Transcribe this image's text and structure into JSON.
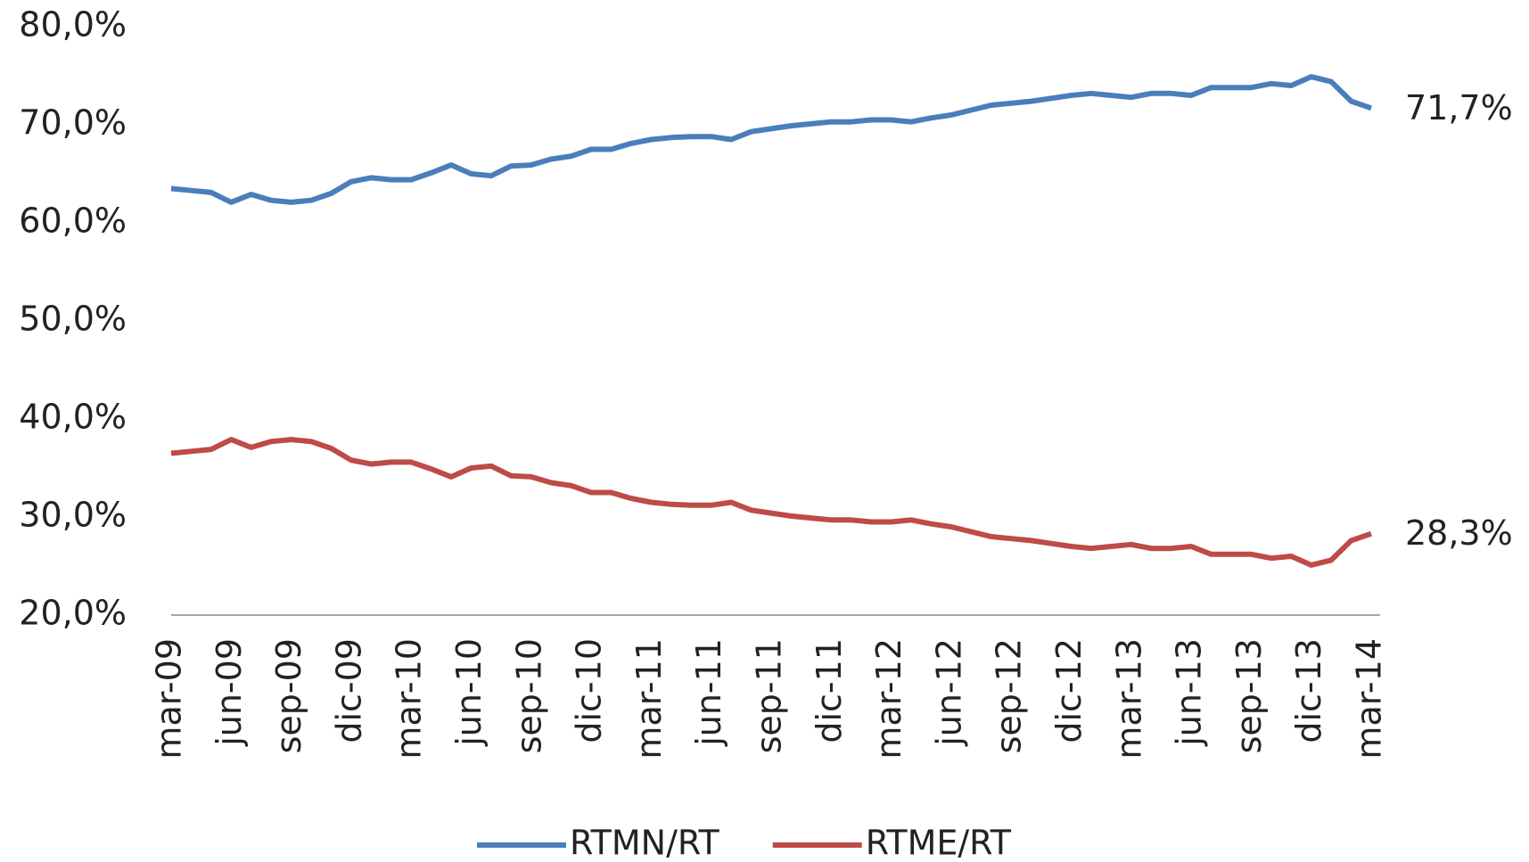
{
  "chart_data": {
    "type": "line",
    "categories": [
      "mar-09",
      null,
      null,
      "jun-09",
      null,
      null,
      "sep-09",
      null,
      null,
      "dic-09",
      null,
      null,
      "mar-10",
      null,
      null,
      "jun-10",
      null,
      null,
      "sep-10",
      null,
      null,
      "dic-10",
      null,
      null,
      "mar-11",
      null,
      null,
      "jun-11",
      null,
      null,
      "sep-11",
      null,
      null,
      "dic-11",
      null,
      null,
      "mar-12",
      null,
      null,
      "jun-12",
      null,
      null,
      "sep-12",
      null,
      null,
      "dic-12",
      null,
      null,
      "mar-13",
      null,
      null,
      "jun-13",
      null,
      null,
      "sep-13",
      null,
      null,
      "dic-13",
      null,
      null,
      "mar-14"
    ],
    "series": [
      {
        "name": "RTMN/RT",
        "color": "#4a7ebb",
        "values": [
          63.5,
          63.3,
          63.1,
          62.1,
          62.9,
          62.3,
          62.1,
          62.3,
          63.0,
          64.2,
          64.6,
          64.4,
          64.4,
          65.1,
          65.9,
          65.0,
          64.8,
          65.8,
          65.9,
          66.5,
          66.8,
          67.5,
          67.5,
          68.1,
          68.5,
          68.7,
          68.8,
          68.8,
          68.5,
          69.3,
          69.6,
          69.9,
          70.1,
          70.3,
          70.3,
          70.5,
          70.5,
          70.3,
          70.7,
          71.0,
          71.5,
          72.0,
          72.2,
          72.4,
          72.7,
          73.0,
          73.2,
          73.0,
          72.8,
          73.2,
          73.2,
          73.0,
          73.8,
          73.8,
          73.8,
          74.2,
          74.0,
          74.9,
          74.4,
          72.4,
          71.7
        ],
        "value_labels": [
          null,
          null,
          null,
          null,
          null,
          null,
          null,
          null,
          null,
          null,
          null,
          null,
          null,
          null,
          null,
          null,
          null,
          null,
          null,
          null,
          null,
          null,
          null,
          null,
          null,
          null,
          null,
          null,
          null,
          null,
          null,
          null,
          null,
          null,
          null,
          null,
          null,
          null,
          null,
          null,
          null,
          null,
          null,
          null,
          null,
          null,
          null,
          null,
          null,
          null,
          null,
          null,
          null,
          null,
          null,
          null,
          null,
          null,
          null,
          null,
          "71,7%"
        ]
      },
      {
        "name": "RTME/RT",
        "color": "#be4b48",
        "values": [
          36.5,
          36.7,
          36.9,
          37.9,
          37.1,
          37.7,
          37.9,
          37.7,
          37.0,
          35.8,
          35.4,
          35.6,
          35.6,
          34.9,
          34.1,
          35.0,
          35.2,
          34.2,
          34.1,
          33.5,
          33.2,
          32.5,
          32.5,
          31.9,
          31.5,
          31.3,
          31.2,
          31.2,
          31.5,
          30.7,
          30.4,
          30.1,
          29.9,
          29.7,
          29.7,
          29.5,
          29.5,
          29.7,
          29.3,
          29.0,
          28.5,
          28.0,
          27.8,
          27.6,
          27.3,
          27.0,
          26.8,
          27.0,
          27.2,
          26.8,
          26.8,
          27.0,
          26.2,
          26.2,
          26.2,
          25.8,
          26.0,
          25.1,
          25.6,
          27.6,
          28.3
        ],
        "value_labels": [
          null,
          null,
          null,
          null,
          null,
          null,
          null,
          null,
          null,
          null,
          null,
          null,
          null,
          null,
          null,
          null,
          null,
          null,
          null,
          null,
          null,
          null,
          null,
          null,
          null,
          null,
          null,
          null,
          null,
          null,
          null,
          null,
          null,
          null,
          null,
          null,
          null,
          null,
          null,
          null,
          null,
          null,
          null,
          null,
          null,
          null,
          null,
          null,
          null,
          null,
          null,
          null,
          null,
          null,
          null,
          null,
          null,
          null,
          null,
          null,
          "28,3%"
        ]
      }
    ],
    "ylim": [
      20,
      80
    ],
    "yticks": [
      {
        "value": 20,
        "label": "20,0%"
      },
      {
        "value": 30,
        "label": "30,0%"
      },
      {
        "value": 40,
        "label": "40,0%"
      },
      {
        "value": 50,
        "label": "50,0%"
      },
      {
        "value": 60,
        "label": "60,0%"
      },
      {
        "value": 70,
        "label": "70,0%"
      },
      {
        "value": 80,
        "label": "80,0%"
      }
    ],
    "grid": false,
    "legend": "bottom"
  }
}
